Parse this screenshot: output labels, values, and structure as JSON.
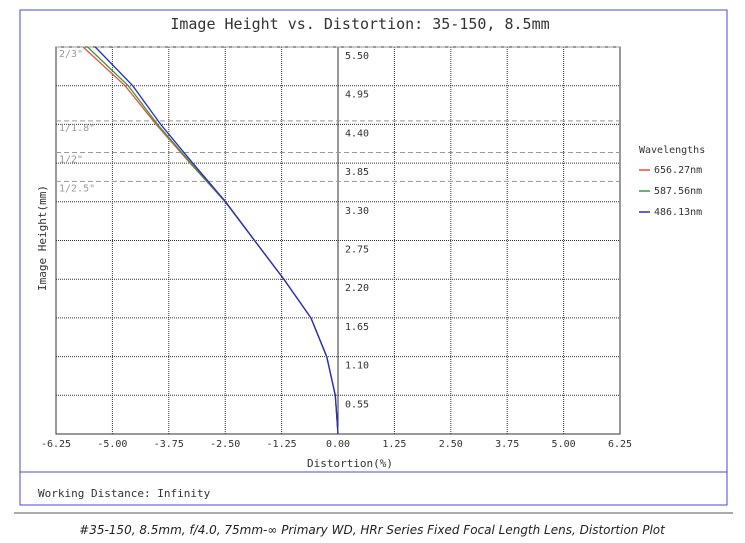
{
  "chart_data": {
    "type": "line",
    "title": "Image Height vs. Distortion: 35-150, 8.5mm",
    "x_label": "Distortion(%)",
    "y_label": "Image Height(mm)",
    "legend_title": "Wavelengths",
    "footer": "Working Distance: Infinity",
    "caption": "#35-150, 8.5mm, f/4.0, 75mm-∞ Primary WD, HRr Series Fixed Focal Length Lens, Distortion Plot",
    "xlim": [
      -6.25,
      6.25
    ],
    "ylim": [
      0,
      5.5
    ],
    "xticks": [
      {
        "value": -6.25,
        "label": "-6.25"
      },
      {
        "value": -5,
        "label": "-5.00"
      },
      {
        "value": -3.75,
        "label": "-3.75"
      },
      {
        "value": -2.5,
        "label": "-2.50"
      },
      {
        "value": -1.25,
        "label": "-1.25"
      },
      {
        "value": 0,
        "label": "0.00"
      },
      {
        "value": 1.25,
        "label": "1.25"
      },
      {
        "value": 2.5,
        "label": "2.50"
      },
      {
        "value": 3.75,
        "label": "3.75"
      },
      {
        "value": 5,
        "label": "5.00"
      },
      {
        "value": 6.25,
        "label": "6.25"
      }
    ],
    "yticks": [
      {
        "value": 0.55,
        "label": "0.55"
      },
      {
        "value": 1.1,
        "label": "1.10"
      },
      {
        "value": 1.65,
        "label": "1.65"
      },
      {
        "value": 2.2,
        "label": "2.20"
      },
      {
        "value": 2.75,
        "label": "2.75"
      },
      {
        "value": 3.3,
        "label": "3.30"
      },
      {
        "value": 3.85,
        "label": "3.85"
      },
      {
        "value": 4.4,
        "label": "4.40"
      },
      {
        "value": 4.95,
        "label": "4.95"
      },
      {
        "value": 5.5,
        "label": "5.50"
      }
    ],
    "grid": true,
    "sensors": [
      {
        "value": 5.5,
        "label": "2/3\""
      },
      {
        "value": 4.45,
        "label": "1/1.8\""
      },
      {
        "value": 4.0,
        "label": "1/2\""
      },
      {
        "value": 3.59,
        "label": "1/2.5\""
      }
    ],
    "y": [
      0,
      0.55,
      1.1,
      1.65,
      2.2,
      2.75,
      3.3,
      3.85,
      4.4,
      4.95,
      5.5
    ],
    "series": [
      {
        "name": "656.27nm",
        "color": "#e8503a",
        "x": [
          0,
          -0.06,
          -0.25,
          -0.6,
          -1.2,
          -1.85,
          -2.5,
          -3.28,
          -4.03,
          -4.72,
          -5.65
        ]
      },
      {
        "name": "587.56nm",
        "color": "#3a9a3a",
        "x": [
          0,
          -0.06,
          -0.25,
          -0.6,
          -1.2,
          -1.85,
          -2.5,
          -3.26,
          -4.0,
          -4.65,
          -5.55
        ]
      },
      {
        "name": "486.13nm",
        "color": "#2a2acc",
        "x": [
          0,
          -0.06,
          -0.25,
          -0.6,
          -1.2,
          -1.85,
          -2.49,
          -3.22,
          -3.93,
          -4.55,
          -5.38
        ]
      }
    ]
  }
}
